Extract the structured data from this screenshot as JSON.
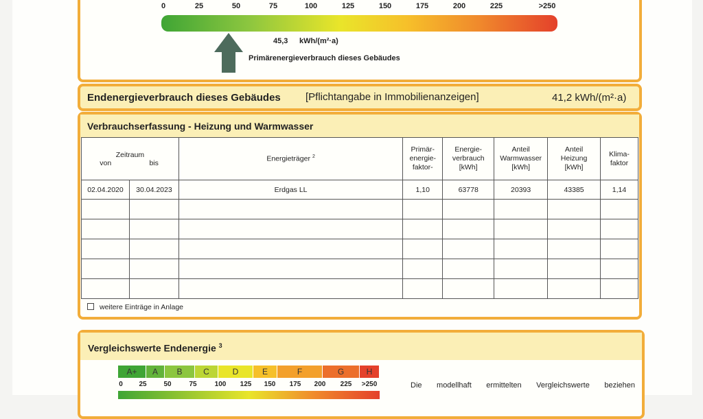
{
  "primary_energy": {
    "scale": [
      "0",
      "25",
      "50",
      "75",
      "100",
      "125",
      "150",
      "175",
      "200",
      "225",
      ">250"
    ],
    "value": "45,3",
    "unit": "kWh/(m²·a)",
    "label": "Primärenergieverbrauch dieses Gebäudes"
  },
  "final_energy": {
    "title": "Endenergieverbrauch dieses Gebäudes",
    "note": "[Pflichtangabe in Immobilienanzeigen]",
    "value": "41,2 kWh/(m²·a)"
  },
  "consumption": {
    "title": "Verbrauchserfassung - Heizung und Warmwasser",
    "table": {
      "header": {
        "period": "Zeitraum",
        "from": "von",
        "to": "bis",
        "carrier": "Energieträger",
        "carrier_sup": "2",
        "columns": [
          [
            "Primär-",
            "energie-",
            "faktor-"
          ],
          [
            "Energie-",
            "verbrauch",
            "[kWh]"
          ],
          [
            "Anteil",
            "Warmwasser",
            "[kWh]"
          ],
          [
            "Anteil",
            "Heizung",
            "[kWh]"
          ],
          [
            "Klima-",
            "faktor"
          ]
        ]
      },
      "rows": [
        [
          "02.04.2020",
          "30.04.2023",
          "Erdgas LL",
          "1,10",
          "63778",
          "20393",
          "43385",
          "1,14"
        ]
      ]
    },
    "footer": "weitere Einträge in Anlage"
  },
  "comparison": {
    "title": "Vergleichswerte Endenergie",
    "title_sup": "3",
    "classes": [
      "A+",
      "A",
      "B",
      "C",
      "D",
      "E",
      "F",
      "G",
      "H"
    ],
    "scale": [
      "0",
      "25",
      "50",
      "75",
      "100",
      "125",
      "150",
      "175",
      "200",
      "225",
      ">250"
    ],
    "text": "Die modellhaft ermittelten Vergleichswerte beziehen"
  }
}
